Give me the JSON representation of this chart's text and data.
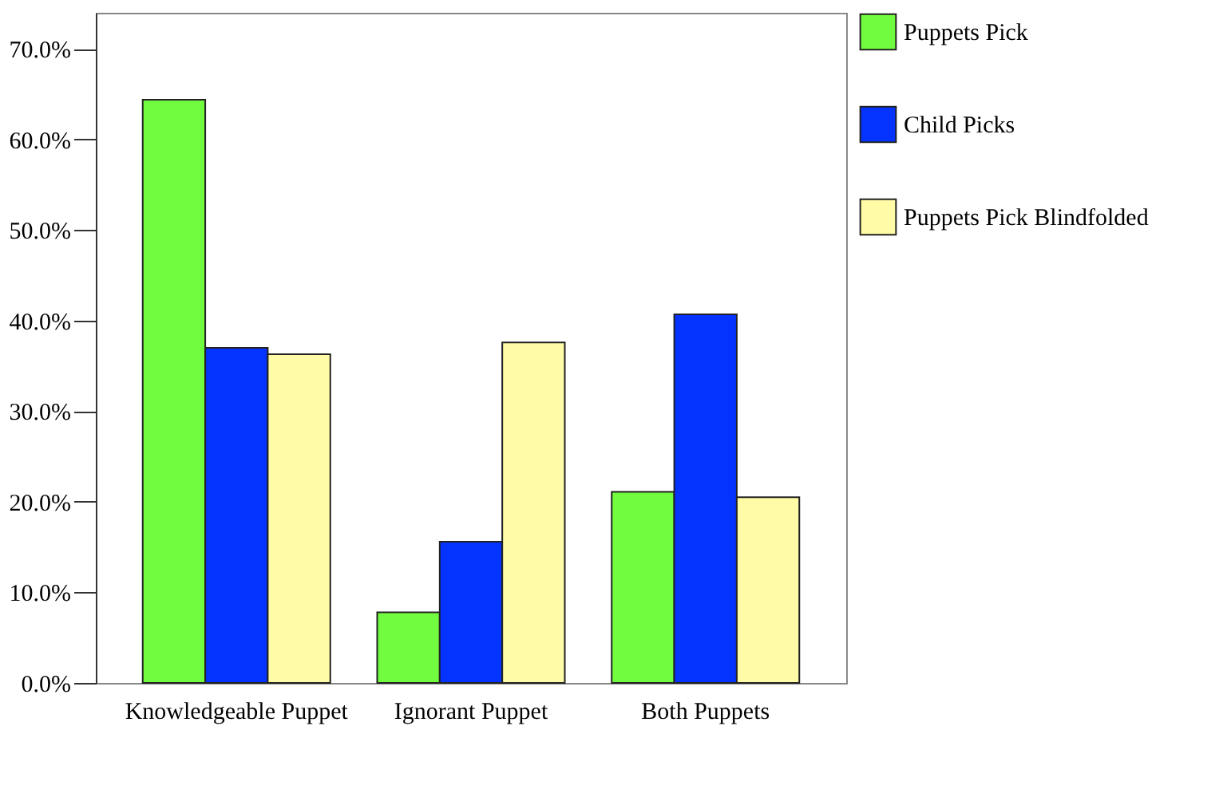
{
  "chart_data": {
    "type": "bar",
    "categories": [
      "Knowledgeable Puppet",
      "Ignorant Puppet",
      "Both Puppets"
    ],
    "series": [
      {
        "name": "Puppets Pick",
        "color": "#72fc3f",
        "values": [
          64.4,
          7.8,
          21.1
        ]
      },
      {
        "name": "Child Picks",
        "color": "#0433ff",
        "values": [
          37.0,
          15.6,
          40.7
        ]
      },
      {
        "name": "Puppets Pick Blindfolded",
        "color": "#fffba6",
        "values": [
          36.3,
          37.6,
          20.5
        ]
      }
    ],
    "ylim": [
      0,
      74
    ],
    "yticks": [
      {
        "value": 0,
        "label": "0.0%"
      },
      {
        "value": 10,
        "label": "10.0%"
      },
      {
        "value": 20,
        "label": "20.0%"
      },
      {
        "value": 30,
        "label": "30.0%"
      },
      {
        "value": 40,
        "label": "40.0%"
      },
      {
        "value": 50,
        "label": "50.0%"
      },
      {
        "value": 60,
        "label": "60.0%"
      },
      {
        "value": 70,
        "label": "70.0%"
      }
    ],
    "grid": false,
    "legend": "right"
  }
}
